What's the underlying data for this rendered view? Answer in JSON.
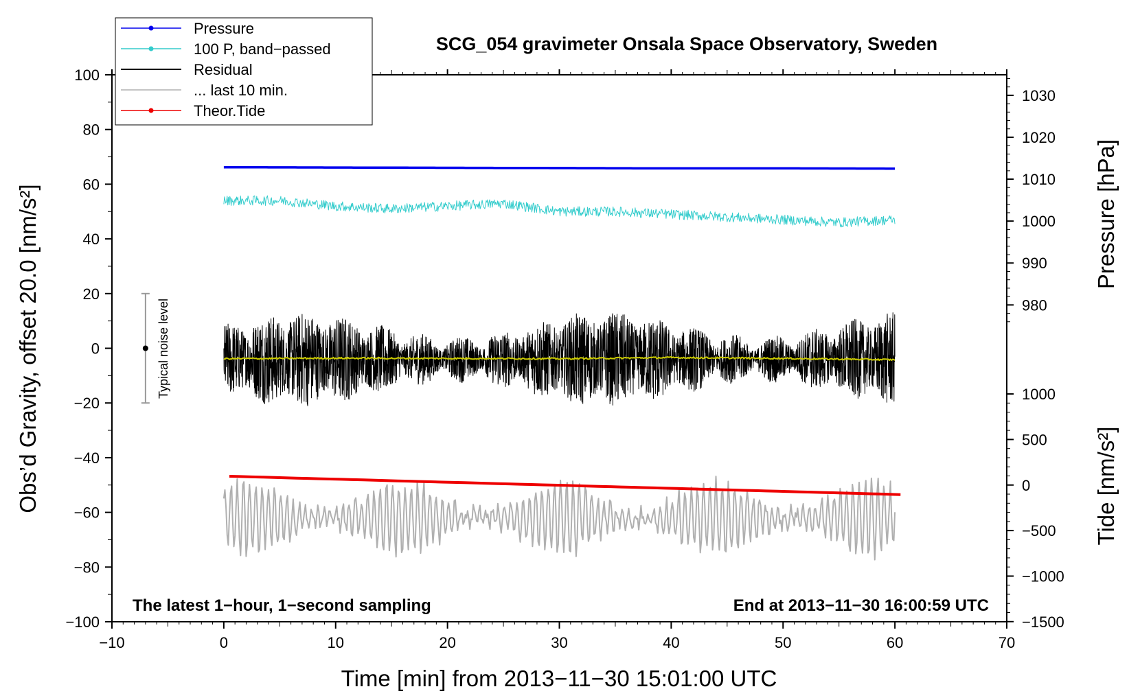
{
  "chart_data": {
    "type": "line",
    "title": "SCG_054 gravimeter Onsala Space Observatory, Sweden",
    "xlabel": "Time [min] from 2013−11−30 15:01:00 UTC",
    "ylabel_left": "Obs’d Gravity, offset 20.0 [nm/s²]",
    "ylabel_right_pressure": "Pressure [hPa]",
    "ylabel_right_tide": "Tide [nm/s²]",
    "xlim": [
      -10,
      70
    ],
    "ylim_left": [
      -100,
      100
    ],
    "x_ticks": [
      "−10",
      "0",
      "10",
      "20",
      "30",
      "40",
      "50",
      "60",
      "70"
    ],
    "x_tick_values": [
      -10,
      0,
      10,
      20,
      30,
      40,
      50,
      60,
      70
    ],
    "y_ticks_left": [
      "100",
      "80",
      "60",
      "40",
      "20",
      "0",
      "−20",
      "−40",
      "−60",
      "−80",
      "−100"
    ],
    "y_tick_values_left": [
      100,
      80,
      60,
      40,
      20,
      0,
      -20,
      -40,
      -60,
      -80,
      -100
    ],
    "pressure_axis": {
      "ticks": [
        "1030",
        "1020",
        "1010",
        "1000",
        "990",
        "980"
      ],
      "values": [
        1030,
        1020,
        1010,
        1000,
        990,
        980
      ],
      "left_equiv_at_1030": 92.5,
      "left_per_hPa": 1.533
    },
    "tide_axis": {
      "ticks": [
        "1000",
        "500",
        "0",
        "−500",
        "−1000",
        "−1500"
      ],
      "values": [
        1000,
        500,
        0,
        -500,
        -1000,
        -1500
      ],
      "left_equiv_at_0": -50,
      "left_per_unit": 0.0333
    },
    "annotations": {
      "bottom_left": "The latest 1−hour, 1−second sampling",
      "bottom_right": "End at 2013−11−30 16:00:59 UTC",
      "noise_label": "Typical noise level"
    },
    "noise_bar": {
      "x": -7,
      "center": 0,
      "half_range": 20
    },
    "legend": {
      "position": "top-left",
      "entries": [
        {
          "label": "Pressure",
          "color": "#0000ee",
          "marker": true
        },
        {
          "label": "100 P, band−passed",
          "color": "#33cccc",
          "marker": true
        },
        {
          "label": "Residual",
          "color": "#000000",
          "marker": false
        },
        {
          "label": "... last 10 min.",
          "color": "#b0b0b0",
          "marker": false
        },
        {
          "label": "Theor.Tide",
          "color": "#ee0000",
          "marker": true
        }
      ]
    },
    "series": [
      {
        "name": "Pressure",
        "color": "#0000ee",
        "x": [
          0,
          10,
          20,
          30,
          40,
          50,
          60
        ],
        "values": [
          66.2,
          66.1,
          66.0,
          65.9,
          65.8,
          65.8,
          65.7
        ],
        "amplitude": 0.2
      },
      {
        "name": "100 P, band−passed",
        "color": "#33cccc",
        "x": [
          0,
          5,
          10,
          15,
          20,
          25,
          30,
          35,
          40,
          45,
          50,
          55,
          60
        ],
        "values": [
          54,
          54,
          52,
          51,
          52,
          53,
          50,
          50,
          49,
          48,
          47,
          46,
          47
        ],
        "amplitude": 1.8
      },
      {
        "name": "Residual",
        "color": "#000000",
        "x": [
          0,
          5,
          10,
          15,
          20,
          25,
          30,
          35,
          40,
          45,
          50,
          55,
          60
        ],
        "values": [
          -4,
          -4,
          -4,
          -4,
          -4,
          -4,
          -4,
          -4,
          -4,
          -4,
          -4,
          -4,
          -4
        ],
        "amplitude": 13
      },
      {
        "name": "Residual mean",
        "color": "#cccc00",
        "x": [
          0,
          10,
          20,
          30,
          40,
          50,
          60
        ],
        "values": [
          -3.8,
          -3.6,
          -3.7,
          -3.8,
          -3.4,
          -3.7,
          -4.2
        ],
        "amplitude": 0.3
      },
      {
        "name": "... last 10 min.",
        "color": "#b0b0b0",
        "x": [
          0,
          10,
          20,
          30,
          40,
          50,
          60
        ],
        "values": [
          -62,
          -62,
          -62,
          -62,
          -62,
          -62,
          -62
        ],
        "amplitude": 13
      },
      {
        "name": "Theor.Tide",
        "color": "#ee0000",
        "x": [
          0.5,
          60.5
        ],
        "values": [
          -46.8,
          -53.5
        ],
        "amplitude": 0
      }
    ]
  }
}
